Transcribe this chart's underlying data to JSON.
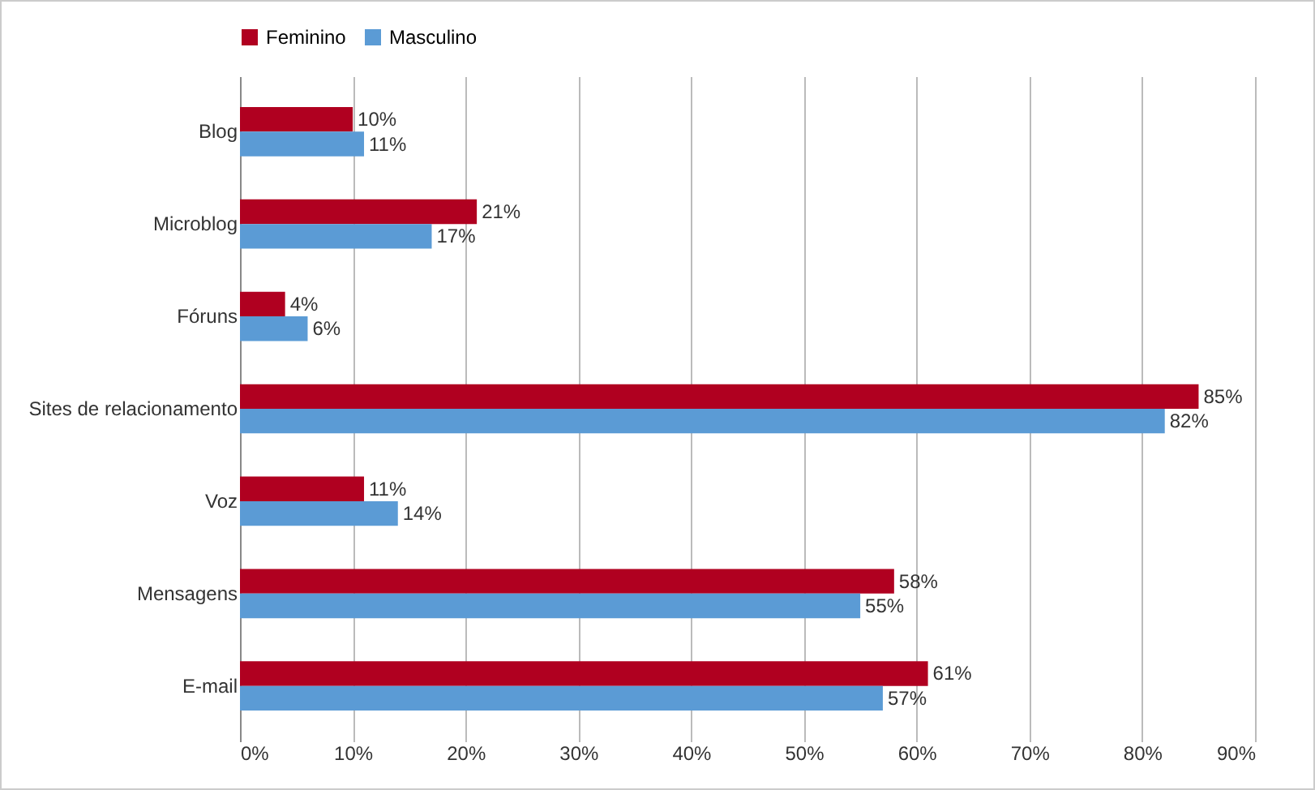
{
  "chart_data": {
    "type": "bar",
    "orientation": "horizontal",
    "categories": [
      "Blog",
      "Microblog",
      "Fóruns",
      "Sites de relacionamento",
      "Voz",
      "Mensagens",
      "E-mail"
    ],
    "series": [
      {
        "name": "Feminino",
        "color": "#b00020",
        "values": [
          10,
          21,
          4,
          85,
          11,
          58,
          61
        ],
        "value_labels": [
          "10%",
          "21%",
          "4%",
          "85%",
          "11%",
          "58%",
          "61%"
        ]
      },
      {
        "name": "Masculino",
        "color": "#5b9bd5",
        "values": [
          11,
          17,
          6,
          82,
          14,
          55,
          57
        ],
        "value_labels": [
          "11%",
          "17%",
          "6%",
          "82%",
          "14%",
          "55%",
          "57%"
        ]
      }
    ],
    "xlim": [
      0,
      90
    ],
    "xticks": [
      {
        "value": 0,
        "label": "0%"
      },
      {
        "value": 10,
        "label": "10%"
      },
      {
        "value": 20,
        "label": "20%"
      },
      {
        "value": 30,
        "label": "30%"
      },
      {
        "value": 40,
        "label": "40%"
      },
      {
        "value": 50,
        "label": "50%"
      },
      {
        "value": 60,
        "label": "60%"
      },
      {
        "value": 70,
        "label": "70%"
      },
      {
        "value": 80,
        "label": "80%"
      },
      {
        "value": 90,
        "label": "90%"
      }
    ],
    "grid": "x",
    "legend": "top"
  }
}
